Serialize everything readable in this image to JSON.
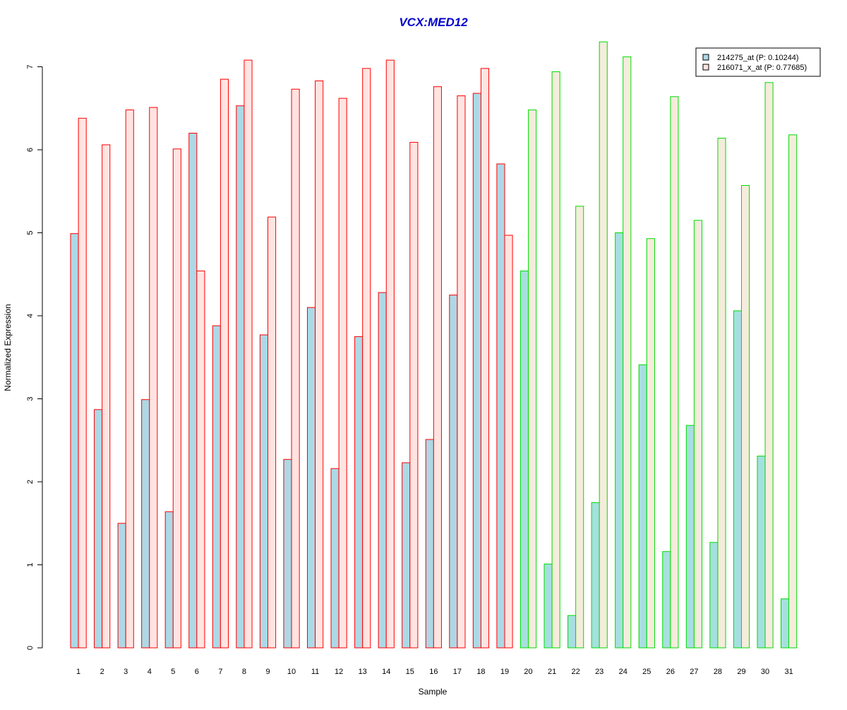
{
  "chart_data": {
    "type": "bar",
    "title": "VCX:MED12",
    "xlabel": "Sample",
    "ylabel": "Normalized Expression",
    "ylim": [
      0,
      7.3
    ],
    "yticks": [
      "0",
      "1",
      "2",
      "3",
      "4",
      "5",
      "6",
      "7"
    ],
    "categories": [
      "1",
      "2",
      "3",
      "4",
      "5",
      "6",
      "7",
      "8",
      "9",
      "10",
      "11",
      "12",
      "13",
      "14",
      "15",
      "16",
      "17",
      "18",
      "19",
      "20",
      "21",
      "22",
      "23",
      "24",
      "25",
      "26",
      "27",
      "28",
      "29",
      "30",
      "31"
    ],
    "series": [
      {
        "name": "214275_at (P: 0.10244)",
        "values": [
          4.99,
          2.87,
          1.5,
          2.99,
          1.64,
          6.2,
          3.88,
          6.53,
          3.77,
          2.27,
          4.1,
          2.16,
          3.75,
          4.28,
          2.23,
          2.51,
          4.25,
          6.68,
          5.83,
          4.54,
          1.01,
          0.39,
          1.75,
          5.0,
          3.41,
          1.16,
          2.68,
          1.27,
          4.06,
          2.31,
          0.59
        ]
      },
      {
        "name": "216071_x_at (P: 0.77685)",
        "values": [
          6.38,
          6.06,
          6.48,
          6.51,
          6.01,
          4.54,
          6.85,
          7.08,
          5.19,
          6.73,
          6.83,
          6.62,
          6.98,
          7.08,
          6.09,
          6.76,
          6.65,
          6.98,
          4.97,
          6.48,
          6.94,
          5.32,
          7.3,
          7.12,
          4.93,
          6.64,
          5.15,
          6.14,
          5.57,
          6.81,
          6.18
        ]
      }
    ],
    "groups": [
      {
        "range": [
          1,
          19
        ],
        "border_color": "#ff0000"
      },
      {
        "range": [
          20,
          31
        ],
        "border_color": "#00dd00"
      }
    ],
    "colors": {
      "title": "#0000cc",
      "group1_series1_fill": "#add8e6",
      "group1_series2_fill": "#ffe4e1",
      "group2_series1_fill": "#a6dfe0",
      "group2_series2_fill": "#f5ecdc"
    },
    "legend_position": "top-right",
    "grid": false
  }
}
